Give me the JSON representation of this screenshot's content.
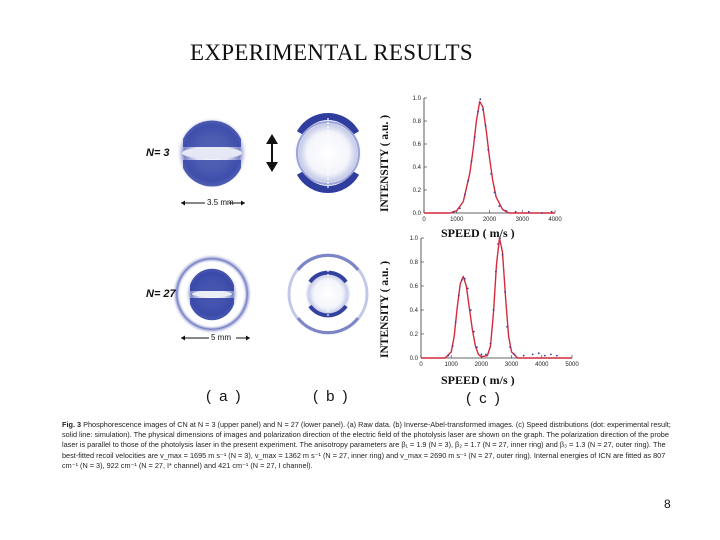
{
  "slide": {
    "title": "EXPERIMENTAL RESULTS",
    "page_number": "8"
  },
  "figure": {
    "rows": [
      {
        "n_label": "N= 3",
        "scale_bar": "3.5 mm"
      },
      {
        "n_label": "N= 27",
        "scale_bar": "5 mm"
      }
    ],
    "panel_labels": [
      "( a )",
      "( b )",
      "( c )"
    ]
  },
  "caption": {
    "label": "Fig. 3",
    "text": "Phosphorescence images of CN at N = 3 (upper panel) and N = 27 (lower panel). (a) Raw data. (b) Inverse-Abel-transformed images. (c) Speed distributions (dot: experimental result; solid line: simulation). The physical dimensions of images and polarization direction of the electric field of the photolysis laser are shown on the graph. The polarization direction of the probe laser is parallel to those of the photolysis laser in the present experiment. The anisotropy parameters are β₁ = 1.9 (N = 3), β₂ = 1.7 (N = 27, inner ring) and β₃ = 1.3 (N = 27, outer ring). The best-fitted recoil velocities are v_max = 1695 m s⁻¹ (N = 3), v_max = 1362 m s⁻¹ (N = 27, inner ring) and v_max = 2690 m s⁻¹ (N = 27, outer ring). Internal energies of ICN are fitted as 807 cm⁻¹ (N = 3), 922 cm⁻¹ (N = 27, I* channel) and 421 cm⁻¹ (N = 27, I channel)."
  },
  "chart_data": [
    {
      "type": "line",
      "title": "",
      "xlabel": "SPEED ( m/s )",
      "ylabel": "INTENSITY ( a.u. )",
      "xlim": [
        0,
        4000
      ],
      "ylim": [
        0,
        1.0
      ],
      "xticks": [
        "0",
        "1000",
        "2000",
        "3000",
        "4000"
      ],
      "yticks": [
        "0.0",
        "0.2",
        "0.4",
        "0.6",
        "0.8",
        "1.0"
      ],
      "series": [
        {
          "name": "simulation",
          "style": "solid",
          "color": "#d42a3c",
          "x": [
            0,
            800,
            1000,
            1200,
            1400,
            1500,
            1600,
            1700,
            1800,
            1900,
            2000,
            2100,
            2200,
            2400,
            2600,
            3000,
            4000
          ],
          "y": [
            0,
            0.0,
            0.02,
            0.1,
            0.35,
            0.55,
            0.8,
            0.97,
            0.92,
            0.72,
            0.48,
            0.28,
            0.14,
            0.03,
            0.0,
            0.0,
            0.0
          ]
        },
        {
          "name": "experiment",
          "style": "dots",
          "color": "#3a3f9e",
          "x": [
            900,
            1100,
            1250,
            1350,
            1450,
            1550,
            1650,
            1720,
            1800,
            1880,
            1960,
            2050,
            2150,
            2300,
            2500,
            2800,
            3200,
            3600,
            3900
          ],
          "y": [
            0.01,
            0.04,
            0.16,
            0.28,
            0.45,
            0.66,
            0.88,
            0.99,
            0.9,
            0.76,
            0.55,
            0.34,
            0.18,
            0.06,
            0.02,
            0.01,
            0.01,
            0.0,
            0.01
          ]
        }
      ]
    },
    {
      "type": "line",
      "title": "",
      "xlabel": "SPEED ( m/s )",
      "ylabel": "INTENSITY ( a.u. )",
      "xlim": [
        0,
        5000
      ],
      "ylim": [
        0,
        1.0
      ],
      "xticks": [
        "0",
        "1000",
        "2000",
        "3000",
        "4000",
        "5000"
      ],
      "yticks": [
        "0.0",
        "0.2",
        "0.4",
        "0.6",
        "0.8",
        "1.0"
      ],
      "series": [
        {
          "name": "simulation",
          "style": "solid",
          "color": "#d42a3c",
          "x": [
            0,
            800,
            1000,
            1100,
            1200,
            1300,
            1400,
            1500,
            1600,
            1700,
            1800,
            1900,
            2000,
            2200,
            2300,
            2400,
            2500,
            2600,
            2700,
            2800,
            2900,
            3000,
            3200,
            4000,
            5000
          ],
          "y": [
            0,
            0.0,
            0.05,
            0.18,
            0.42,
            0.62,
            0.68,
            0.6,
            0.42,
            0.24,
            0.1,
            0.03,
            0.01,
            0.02,
            0.1,
            0.38,
            0.78,
            1.0,
            0.88,
            0.5,
            0.18,
            0.05,
            0.0,
            0.0,
            0.0
          ]
        },
        {
          "name": "experiment",
          "style": "dots",
          "color": "#3a3f9e",
          "x": [
            900,
            1050,
            1150,
            1250,
            1350,
            1450,
            1550,
            1650,
            1750,
            1850,
            2000,
            2150,
            2300,
            2400,
            2480,
            2550,
            2620,
            2700,
            2780,
            2850,
            2950,
            3100,
            3400,
            3700,
            3900,
            4100,
            4300,
            4500
          ],
          "y": [
            0.02,
            0.1,
            0.3,
            0.52,
            0.65,
            0.66,
            0.58,
            0.4,
            0.22,
            0.09,
            0.03,
            0.03,
            0.12,
            0.4,
            0.72,
            0.95,
            1.0,
            0.86,
            0.55,
            0.26,
            0.09,
            0.03,
            0.02,
            0.03,
            0.04,
            0.02,
            0.03,
            0.02
          ]
        }
      ]
    }
  ]
}
